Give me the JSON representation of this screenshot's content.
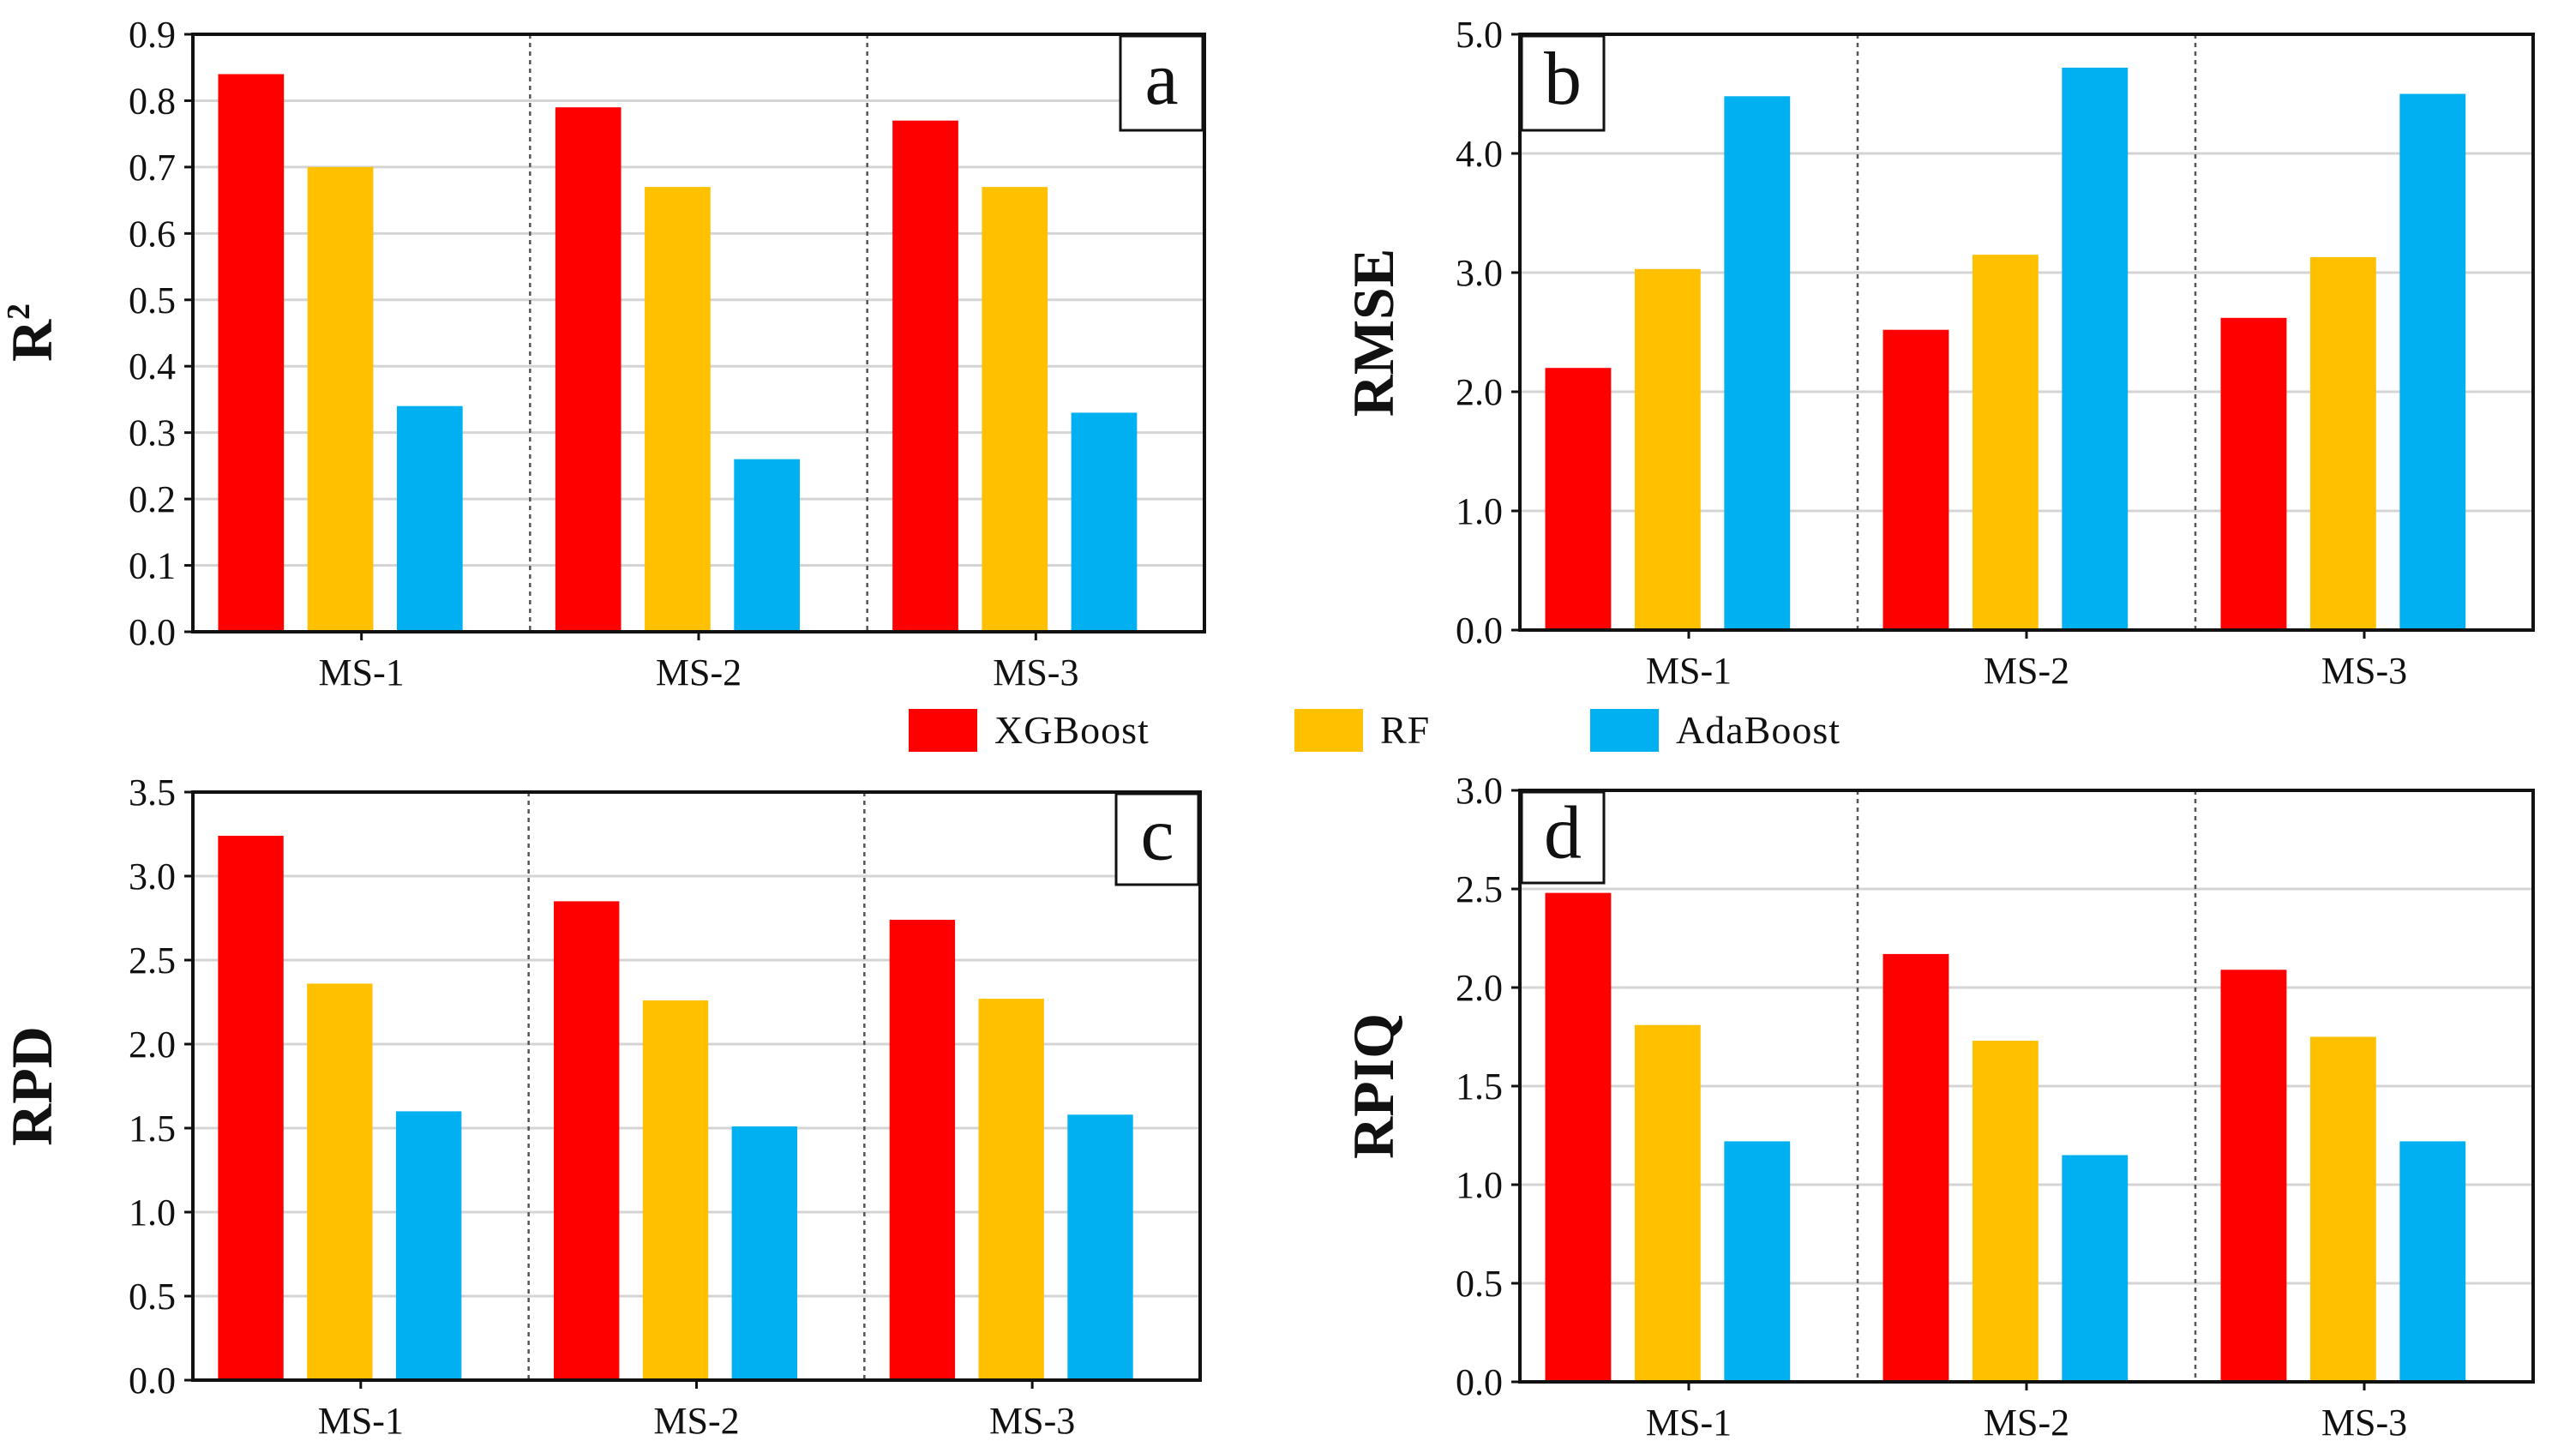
{
  "legend": {
    "items": [
      {
        "label": "XGBoost",
        "color": "#ff0000"
      },
      {
        "label": "RF",
        "color": "#ffc000"
      },
      {
        "label": "AdaBoost",
        "color": "#00b0f0"
      }
    ]
  },
  "chart_data": [
    {
      "type": "bar",
      "panel_label": "a",
      "ylabel": "R",
      "ylabel_superscript": "2",
      "categories": [
        "MS-1",
        "MS-2",
        "MS-3"
      ],
      "ylim": [
        0,
        0.9
      ],
      "yticks": [
        "0.0",
        "0.1",
        "0.2",
        "0.3",
        "0.4",
        "0.5",
        "0.6",
        "0.7",
        "0.8",
        "0.9"
      ],
      "grid": true,
      "series": [
        {
          "name": "XGBoost",
          "values": [
            0.84,
            0.79,
            0.77
          ]
        },
        {
          "name": "RF",
          "values": [
            0.7,
            0.67,
            0.67
          ]
        },
        {
          "name": "AdaBoost",
          "values": [
            0.34,
            0.26,
            0.33
          ]
        }
      ]
    },
    {
      "type": "bar",
      "panel_label": "b",
      "ylabel": "RMSE",
      "categories": [
        "MS-1",
        "MS-2",
        "MS-3"
      ],
      "ylim": [
        0,
        5.0
      ],
      "yticks": [
        "0.0",
        "1.0",
        "2.0",
        "3.0",
        "4.0",
        "5.0"
      ],
      "grid": true,
      "series": [
        {
          "name": "XGBoost",
          "values": [
            2.2,
            2.52,
            2.62
          ]
        },
        {
          "name": "RF",
          "values": [
            3.03,
            3.15,
            3.13
          ]
        },
        {
          "name": "AdaBoost",
          "values": [
            4.48,
            4.72,
            4.5
          ]
        }
      ]
    },
    {
      "type": "bar",
      "panel_label": "c",
      "ylabel": "RPD",
      "categories": [
        "MS-1",
        "MS-2",
        "MS-3"
      ],
      "ylim": [
        0,
        3.5
      ],
      "yticks": [
        "0.0",
        "0.5",
        "1.0",
        "1.5",
        "2.0",
        "2.5",
        "3.0",
        "3.5"
      ],
      "grid": true,
      "series": [
        {
          "name": "XGBoost",
          "values": [
            3.24,
            2.85,
            2.74
          ]
        },
        {
          "name": "RF",
          "values": [
            2.36,
            2.26,
            2.27
          ]
        },
        {
          "name": "AdaBoost",
          "values": [
            1.6,
            1.51,
            1.58
          ]
        }
      ]
    },
    {
      "type": "bar",
      "panel_label": "d",
      "ylabel": "RPIQ",
      "categories": [
        "MS-1",
        "MS-2",
        "MS-3"
      ],
      "ylim": [
        0,
        3.0
      ],
      "yticks": [
        "0.0",
        "0.5",
        "1.0",
        "1.5",
        "2.0",
        "2.5",
        "3.0"
      ],
      "grid": true,
      "series": [
        {
          "name": "XGBoost",
          "values": [
            2.48,
            2.17,
            2.09
          ]
        },
        {
          "name": "RF",
          "values": [
            1.81,
            1.73,
            1.75
          ]
        },
        {
          "name": "AdaBoost",
          "values": [
            1.22,
            1.15,
            1.22
          ]
        }
      ]
    }
  ]
}
